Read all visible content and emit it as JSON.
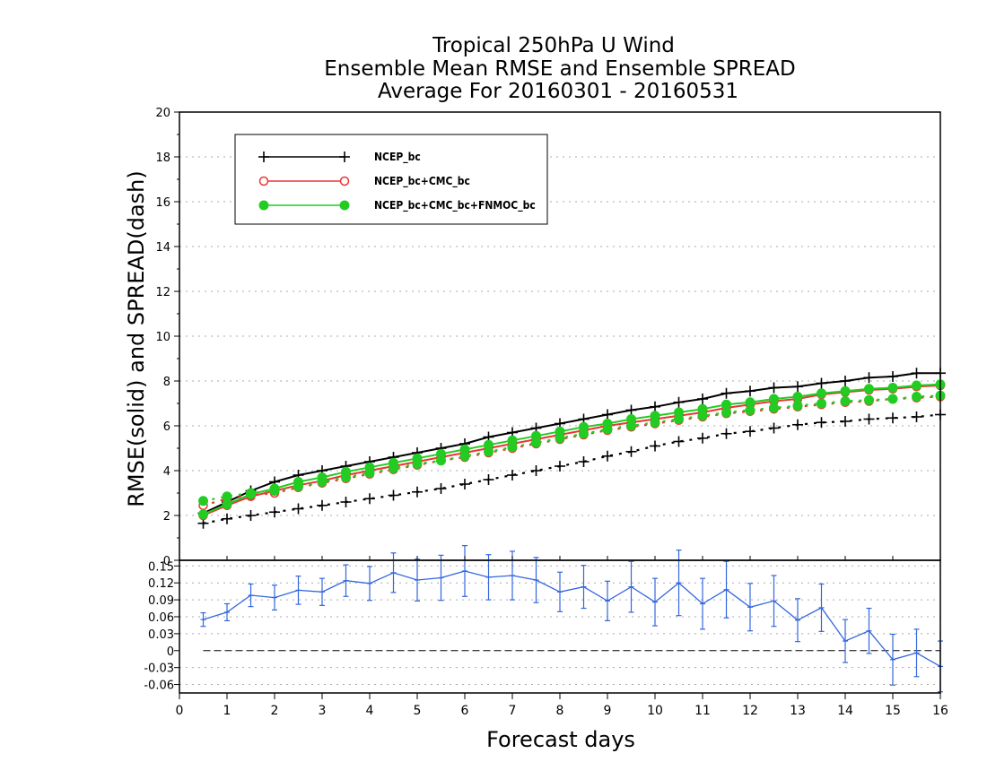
{
  "chart_data": [
    {
      "type": "line",
      "title_lines": [
        "Tropical 250hPa U Wind",
        "Ensemble Mean RMSE and Ensemble SPREAD",
        "Average For 20160301 - 20160531"
      ],
      "ylabel": "RMSE(solid) and SPREAD(dash)",
      "xlabel": "Forecast days",
      "xlim": [
        0,
        16
      ],
      "ylim": [
        0,
        20
      ],
      "xticks": [
        "0",
        "1",
        "2",
        "3",
        "4",
        "5",
        "6",
        "7",
        "8",
        "9",
        "10",
        "11",
        "12",
        "13",
        "14",
        "15",
        "16"
      ],
      "yticks": [
        "0",
        "2",
        "4",
        "6",
        "8",
        "10",
        "12",
        "14",
        "16",
        "18",
        "20"
      ],
      "grid": true,
      "legend_placement": "top-left",
      "x": [
        0.5,
        1,
        1.5,
        2,
        2.5,
        3,
        3.5,
        4,
        4.5,
        5,
        5.5,
        6,
        6.5,
        7,
        7.5,
        8,
        8.5,
        9,
        9.5,
        10,
        10.5,
        11,
        11.5,
        12,
        12.5,
        13,
        13.5,
        14,
        14.5,
        15,
        15.5,
        16
      ],
      "series": [
        {
          "name": "NCEP_bc",
          "color": "#000000",
          "marker": "plus",
          "rmse": [
            2.1,
            2.6,
            3.1,
            3.5,
            3.8,
            4.0,
            4.2,
            4.4,
            4.6,
            4.8,
            5.0,
            5.2,
            5.5,
            5.7,
            5.9,
            6.1,
            6.3,
            6.5,
            6.7,
            6.85,
            7.05,
            7.2,
            7.45,
            7.55,
            7.7,
            7.75,
            7.9,
            8.0,
            8.15,
            8.2,
            8.35,
            8.35
          ],
          "spread": [
            1.65,
            1.85,
            2.0,
            2.15,
            2.3,
            2.45,
            2.6,
            2.75,
            2.9,
            3.05,
            3.2,
            3.4,
            3.6,
            3.8,
            4.0,
            4.2,
            4.4,
            4.65,
            4.85,
            5.1,
            5.3,
            5.45,
            5.65,
            5.75,
            5.9,
            6.05,
            6.15,
            6.2,
            6.3,
            6.35,
            6.4,
            6.5
          ]
        },
        {
          "name": "NCEP_bc+CMC_bc",
          "color": "#ee3333",
          "marker": "open-circle",
          "rmse": [
            2.0,
            2.45,
            2.85,
            3.1,
            3.35,
            3.55,
            3.8,
            4.0,
            4.2,
            4.4,
            4.6,
            4.8,
            5.0,
            5.2,
            5.4,
            5.6,
            5.8,
            6.0,
            6.15,
            6.3,
            6.45,
            6.6,
            6.8,
            6.95,
            7.1,
            7.2,
            7.4,
            7.5,
            7.6,
            7.65,
            7.75,
            7.8
          ],
          "spread": [
            2.45,
            2.75,
            2.9,
            3.0,
            3.25,
            3.45,
            3.65,
            3.85,
            4.05,
            4.25,
            4.45,
            4.6,
            4.8,
            5.0,
            5.2,
            5.4,
            5.6,
            5.8,
            5.95,
            6.1,
            6.25,
            6.4,
            6.55,
            6.65,
            6.75,
            6.85,
            6.95,
            7.05,
            7.1,
            7.2,
            7.25,
            7.3
          ]
        },
        {
          "name": "NCEP_bc+CMC_bc+FNMOC_bc",
          "color": "#22cc22",
          "marker": "filled-circle",
          "rmse": [
            2.05,
            2.5,
            2.95,
            3.2,
            3.5,
            3.7,
            3.95,
            4.15,
            4.35,
            4.55,
            4.75,
            4.95,
            5.15,
            5.35,
            5.55,
            5.75,
            5.95,
            6.1,
            6.3,
            6.45,
            6.6,
            6.75,
            6.95,
            7.05,
            7.2,
            7.3,
            7.45,
            7.55,
            7.65,
            7.7,
            7.8,
            7.85
          ],
          "spread": [
            2.65,
            2.85,
            3.0,
            3.1,
            3.3,
            3.5,
            3.7,
            3.9,
            4.1,
            4.3,
            4.45,
            4.65,
            4.85,
            5.05,
            5.25,
            5.45,
            5.65,
            5.85,
            6.0,
            6.15,
            6.3,
            6.45,
            6.6,
            6.7,
            6.8,
            6.9,
            7.0,
            7.1,
            7.15,
            7.2,
            7.3,
            7.35
          ]
        }
      ]
    },
    {
      "type": "line",
      "title": "",
      "xlim": [
        0,
        16
      ],
      "ylim": [
        -0.075,
        0.16
      ],
      "xticks": [
        "0",
        "1",
        "2",
        "3",
        "4",
        "5",
        "6",
        "7",
        "8",
        "9",
        "10",
        "11",
        "12",
        "13",
        "14",
        "15",
        "16"
      ],
      "yticks": [
        "0.15",
        "0.12",
        "0.09",
        "0.06",
        "0.03",
        "0",
        "-0.03",
        "-0.06"
      ],
      "ytick_values": [
        0.15,
        0.12,
        0.09,
        0.06,
        0.03,
        0,
        -0.03,
        -0.06
      ],
      "xticks_show_0": "0",
      "grid": true,
      "reference_line": 0,
      "series": [
        {
          "color": "#3366dd",
          "x": [
            0.5,
            1,
            1.5,
            2,
            2.5,
            3,
            3.5,
            4,
            4.5,
            5,
            5.5,
            6,
            6.5,
            7,
            7.5,
            8,
            8.5,
            9,
            9.5,
            10,
            10.5,
            11,
            11.5,
            12,
            12.5,
            13,
            13.5,
            14,
            14.5,
            15,
            15.5,
            16
          ],
          "values": [
            0.055,
            0.068,
            0.098,
            0.094,
            0.107,
            0.104,
            0.124,
            0.119,
            0.138,
            0.125,
            0.129,
            0.141,
            0.13,
            0.133,
            0.125,
            0.104,
            0.113,
            0.088,
            0.113,
            0.086,
            0.12,
            0.083,
            0.108,
            0.077,
            0.088,
            0.054,
            0.076,
            0.017,
            0.035,
            -0.016,
            -0.004,
            -0.028
          ],
          "error": [
            0.012,
            0.015,
            0.02,
            0.022,
            0.025,
            0.024,
            0.028,
            0.03,
            0.035,
            0.037,
            0.04,
            0.045,
            0.04,
            0.043,
            0.04,
            0.035,
            0.038,
            0.035,
            0.045,
            0.042,
            0.058,
            0.045,
            0.05,
            0.042,
            0.045,
            0.038,
            0.042,
            0.038,
            0.04,
            0.045,
            0.042,
            0.045
          ]
        }
      ]
    }
  ]
}
